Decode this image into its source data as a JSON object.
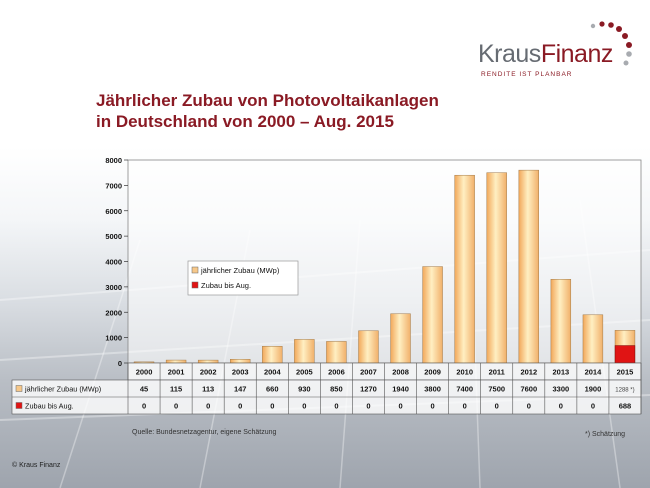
{
  "logo": {
    "brand_part1": "Kraus",
    "brand_part2": "Finanz",
    "tagline": "RENDITE IST PLANBAR"
  },
  "title_line1": "Jährlicher Zubau von Photovoltaikanlagen",
  "title_line2": "in Deutschland von 2000 – Aug. 2015",
  "source": "Quelle: Bundesnetzagentur, eigene Schätzung",
  "footnote": "*) Schätzung",
  "copyright": "© Kraus Finanz",
  "colors": {
    "accent": "#8a1a24",
    "bar_main": "#f7c88a",
    "bar_highlight": "#ffefc2",
    "bar_aug": "#e01414"
  },
  "chart_data": {
    "type": "bar",
    "categories": [
      "2000",
      "2001",
      "2002",
      "2003",
      "2004",
      "2005",
      "2006",
      "2007",
      "2008",
      "2009",
      "2010",
      "2011",
      "2012",
      "2013",
      "2014",
      "2015"
    ],
    "series": [
      {
        "name": "jährlicher Zubau (MWp)",
        "table_label": "jährlicher Zubau (MWp)",
        "values": [
          45,
          115,
          113,
          147,
          660,
          930,
          850,
          1270,
          1940,
          3800,
          7400,
          7500,
          7600,
          3300,
          1900,
          1288
        ],
        "display": [
          "45",
          "115",
          "113",
          "147",
          "660",
          "930",
          "850",
          "1270",
          "1940",
          "3800",
          "7400",
          "7500",
          "7600",
          "3300",
          "1900",
          "1288 *)"
        ]
      },
      {
        "name": "Zubau bis Aug.",
        "table_label": "Zubau bis Aug.",
        "values": [
          0,
          0,
          0,
          0,
          0,
          0,
          0,
          0,
          0,
          0,
          0,
          0,
          0,
          0,
          0,
          688
        ],
        "display": [
          "0",
          "0",
          "0",
          "0",
          "0",
          "0",
          "0",
          "0",
          "0",
          "0",
          "0",
          "0",
          "0",
          "0",
          "0",
          "688"
        ]
      }
    ],
    "yticks": [
      "0",
      "1000",
      "2000",
      "3000",
      "4000",
      "5000",
      "6000",
      "7000",
      "8000"
    ],
    "ylim": [
      0,
      8000
    ],
    "grid": false,
    "legend": "inside-left"
  }
}
